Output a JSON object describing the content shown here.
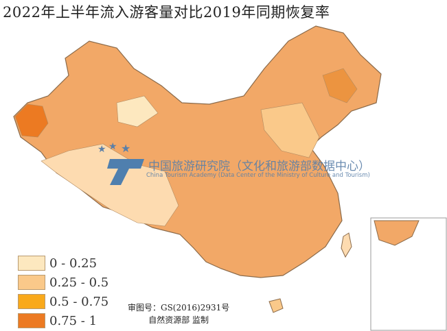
{
  "title": "2022年上半年流入游客量对比2019年同期恢复率",
  "legend": [
    {
      "label": "0 - 0.25",
      "color": "#fde8bf"
    },
    {
      "label": "0.25 - 0.5",
      "color": "#fac98a"
    },
    {
      "label": "0.5 - 0.75",
      "color": "#f9a91b"
    },
    {
      "label": "0.75 - 1",
      "color": "#ec7a22"
    }
  ],
  "approval": {
    "line1": "审图号：GS(2016)2931号",
    "line2": "自然资源部 监制"
  },
  "watermark": {
    "cn": "中国旅游研究院（文化和旅游部数据中心）",
    "en": "China Tourism Academy (Data Center of the Ministry of Culture and Tourism)"
  },
  "colors": {
    "base": "#f2a867",
    "border": "#7a5a3a"
  }
}
